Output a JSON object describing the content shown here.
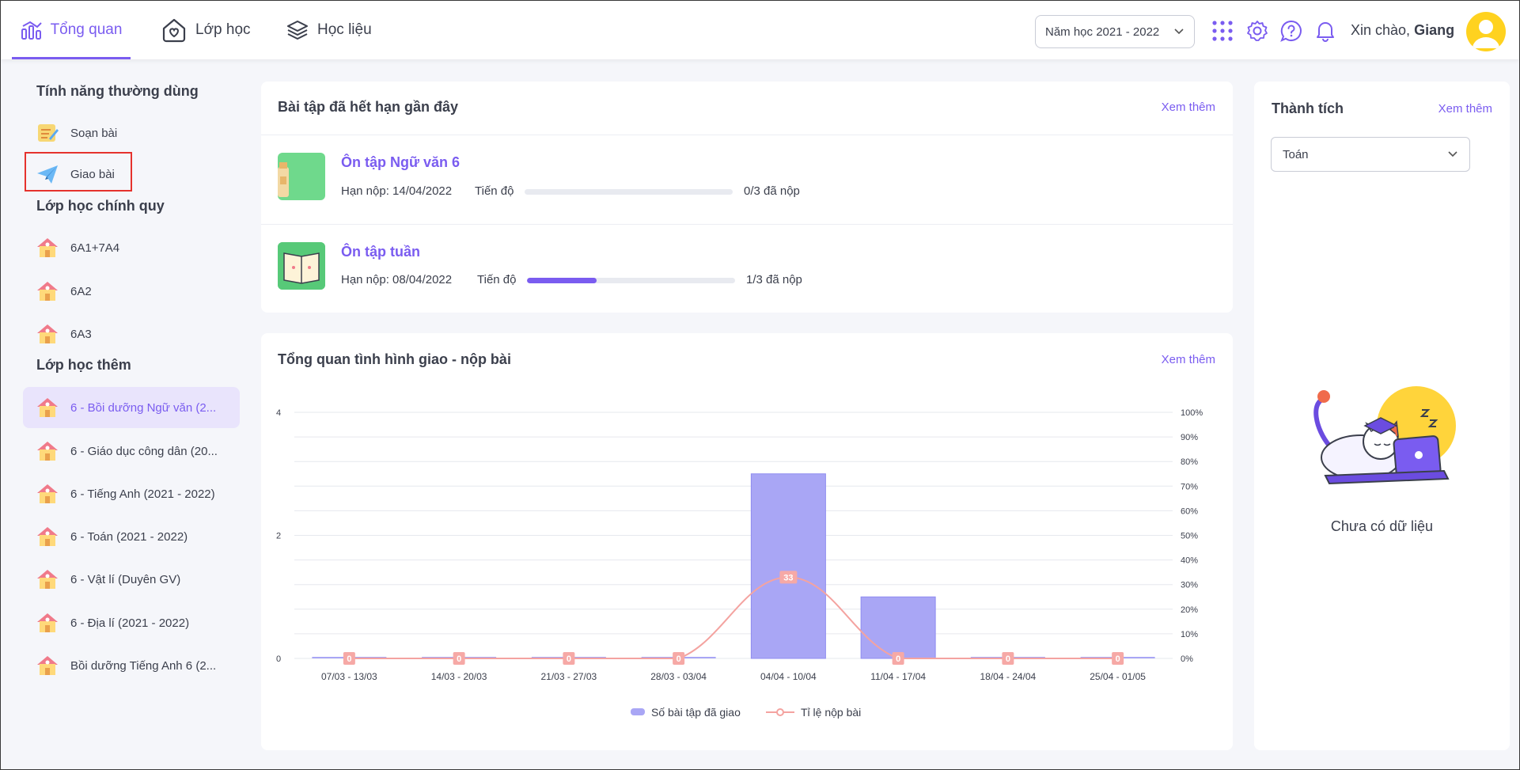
{
  "topbar": {
    "nav": [
      {
        "label": "Tổng quan"
      },
      {
        "label": "Lớp học"
      },
      {
        "label": "Học liệu"
      }
    ],
    "year_select": "Năm học 2021 - 2022",
    "greeting": "Xin chào, ",
    "user_name": "Giang"
  },
  "sidebar": {
    "heading_features": "Tính năng thường dùng",
    "features": [
      {
        "label": "Soạn bài",
        "icon": "compose-icon"
      },
      {
        "label": "Giao bài",
        "icon": "paper-plane-icon"
      }
    ],
    "heading_regular": "Lớp học chính quy",
    "regular_classes": [
      {
        "label": "6A1+7A4"
      },
      {
        "label": "6A2"
      },
      {
        "label": "6A3"
      }
    ],
    "heading_extra": "Lớp học thêm",
    "extra_classes": [
      {
        "label": "6 - Bồi dưỡng Ngữ văn (2..."
      },
      {
        "label": "6 - Giáo dục công dân (20..."
      },
      {
        "label": "6 - Tiếng Anh (2021 - 2022)"
      },
      {
        "label": "6 - Toán (2021 - 2022)"
      },
      {
        "label": "6 - Vật lí (Duyên GV)"
      },
      {
        "label": "6 - Địa lí (2021 - 2022)"
      },
      {
        "label": "Bồi dưỡng Tiếng Anh 6 (2..."
      }
    ]
  },
  "expired": {
    "title": "Bài tập đã hết hạn gần đây",
    "more": "Xem thêm",
    "items": [
      {
        "title": "Ôn tập Ngữ văn 6",
        "deadline": "Hạn nộp: 14/04/2022",
        "progress_label": "Tiến độ",
        "progress": 0.0,
        "count": "0/3 đã nộp"
      },
      {
        "title": "Ôn tập tuần",
        "deadline": "Hạn nộp: 08/04/2022",
        "progress_label": "Tiến độ",
        "progress": 0.333,
        "count": "1/3 đã nộp"
      }
    ]
  },
  "overview": {
    "title": "Tổng quan tình hình giao - nộp bài",
    "more": "Xem thêm"
  },
  "achievements": {
    "title": "Thành tích",
    "more": "Xem thêm",
    "subject": "Toán",
    "empty": "Chưa có dữ liệu"
  },
  "colors": {
    "accent": "#7a5cf0",
    "bar": "#a9a6f5",
    "line": "#f4a3a0",
    "highlight": "#e5322d"
  },
  "chart_data": {
    "type": "bar",
    "categories": [
      "07/03 - 13/03",
      "14/03 - 20/03",
      "21/03 - 27/03",
      "28/03 - 03/04",
      "04/04 - 10/04",
      "11/04 - 17/04",
      "18/04 - 24/04",
      "25/04 - 01/05"
    ],
    "series": [
      {
        "name": "Số bài tập đã giao",
        "type": "bar",
        "axis": "left",
        "values": [
          0,
          0,
          0,
          0,
          3,
          1,
          0,
          0
        ]
      },
      {
        "name": "Tỉ lệ nộp bài",
        "type": "line",
        "axis": "right",
        "values": [
          0,
          0,
          0,
          0,
          33,
          0,
          0,
          0
        ]
      }
    ],
    "y_left_ticks": [
      "0",
      "2",
      "4"
    ],
    "y_left_range": [
      0,
      4
    ],
    "y_right_ticks": [
      "0%",
      "10%",
      "20%",
      "30%",
      "40%",
      "50%",
      "60%",
      "70%",
      "80%",
      "90%",
      "100%"
    ],
    "y_right_range": [
      0,
      100
    ],
    "grid": true,
    "legend": "bottom-center"
  }
}
